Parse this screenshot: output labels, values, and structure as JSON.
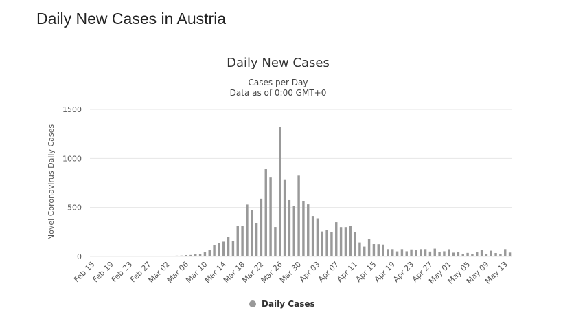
{
  "page": {
    "title": "Daily New Cases in Austria"
  },
  "colors": {
    "bar": "#999999",
    "grid": "#e6e6e6",
    "text": "#333333"
  },
  "chart_data": {
    "type": "bar",
    "title": "Daily New Cases",
    "subtitle_lines": [
      "Cases per Day",
      "Data as of 0:00 GMT+0"
    ],
    "xlabel": "",
    "ylabel": "Novel Coronavirus Daily Cases",
    "ylim": [
      0,
      1500
    ],
    "yticks": [
      0,
      500,
      1000,
      1500
    ],
    "x_tick_labels": [
      "Feb 15",
      "Feb 19",
      "Feb 23",
      "Feb 27",
      "Mar 02",
      "Mar 06",
      "Mar 10",
      "Mar 14",
      "Mar 18",
      "Mar 22",
      "Mar 26",
      "Mar 30",
      "Apr 03",
      "Apr 07",
      "Apr 11",
      "Apr 15",
      "Apr 19",
      "Apr 23",
      "Apr 27",
      "May 01",
      "May 05",
      "May 09",
      "May 13"
    ],
    "grid": true,
    "legend": {
      "position": "bottom-center",
      "entries": [
        "Daily Cases"
      ]
    },
    "series": [
      {
        "name": "Daily Cases",
        "categories": [
          "Feb 15",
          "Feb 16",
          "Feb 17",
          "Feb 18",
          "Feb 19",
          "Feb 20",
          "Feb 21",
          "Feb 22",
          "Feb 23",
          "Feb 24",
          "Feb 25",
          "Feb 26",
          "Feb 27",
          "Feb 28",
          "Feb 29",
          "Mar 01",
          "Mar 02",
          "Mar 03",
          "Mar 04",
          "Mar 05",
          "Mar 06",
          "Mar 07",
          "Mar 08",
          "Mar 09",
          "Mar 10",
          "Mar 11",
          "Mar 12",
          "Mar 13",
          "Mar 14",
          "Mar 15",
          "Mar 16",
          "Mar 17",
          "Mar 18",
          "Mar 19",
          "Mar 20",
          "Mar 21",
          "Mar 22",
          "Mar 23",
          "Mar 24",
          "Mar 25",
          "Mar 26",
          "Mar 27",
          "Mar 28",
          "Mar 29",
          "Mar 30",
          "Mar 31",
          "Apr 01",
          "Apr 02",
          "Apr 03",
          "Apr 04",
          "Apr 05",
          "Apr 06",
          "Apr 07",
          "Apr 08",
          "Apr 09",
          "Apr 10",
          "Apr 11",
          "Apr 12",
          "Apr 13",
          "Apr 14",
          "Apr 15",
          "Apr 16",
          "Apr 17",
          "Apr 18",
          "Apr 19",
          "Apr 20",
          "Apr 21",
          "Apr 22",
          "Apr 23",
          "Apr 24",
          "Apr 25",
          "Apr 26",
          "Apr 27",
          "Apr 28",
          "Apr 29",
          "Apr 30",
          "May 01",
          "May 02",
          "May 03",
          "May 04",
          "May 05",
          "May 06",
          "May 07",
          "May 08",
          "May 09",
          "May 10",
          "May 11",
          "May 12",
          "May 13",
          "May 14"
        ],
        "values": [
          0,
          0,
          0,
          0,
          0,
          0,
          0,
          0,
          0,
          0,
          2,
          0,
          1,
          2,
          2,
          1,
          4,
          3,
          8,
          9,
          14,
          15,
          21,
          27,
          47,
          70,
          115,
          136,
          151,
          202,
          158,
          314,
          314,
          530,
          470,
          342,
          590,
          890,
          805,
          301,
          1320,
          780,
          575,
          516,
          825,
          564,
          532,
          413,
          389,
          255,
          269,
          250,
          350,
          300,
          300,
          315,
          246,
          143,
          101,
          181,
          126,
          125,
          121,
          75,
          75,
          52,
          75,
          53,
          72,
          70,
          75,
          75,
          50,
          80,
          45,
          53,
          74,
          39,
          47,
          26,
          36,
          24,
          44,
          70,
          26,
          59,
          35,
          24,
          75,
          40
        ]
      }
    ]
  }
}
